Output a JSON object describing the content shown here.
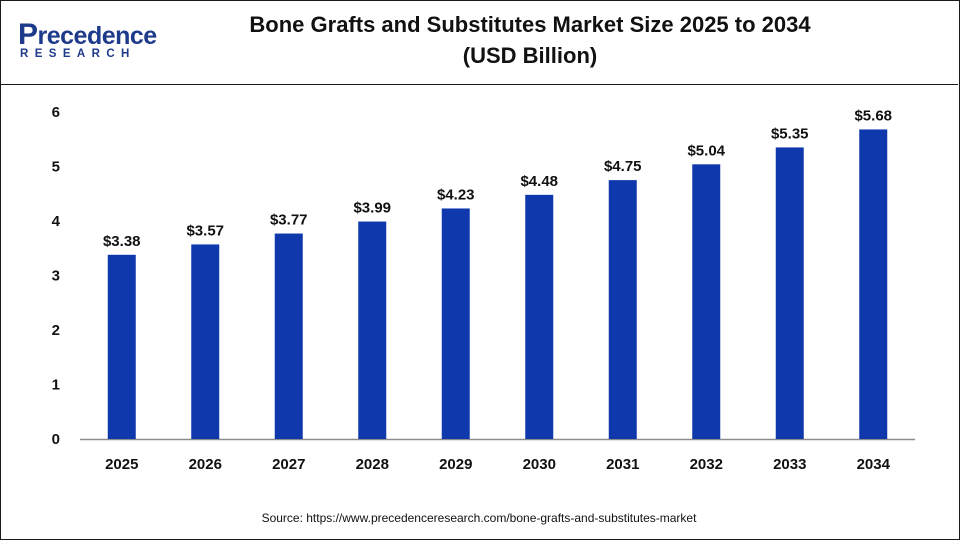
{
  "header": {
    "logo_main": "recedence",
    "logo_main_initial": "P",
    "logo_sub": "RESEARCH",
    "title_line1": "Bone Grafts and Substitutes Market Size 2025 to 2034",
    "title_line2": "(USD Billion)"
  },
  "footer": {
    "source": "Source: https://www.precedenceresearch.com/bone-grafts-and-substitutes-market"
  },
  "colors": {
    "bar": "#0f38ad",
    "axis": "#8c8c8c",
    "text": "#111111",
    "brand": "#1e3a8a"
  },
  "chart_data": {
    "type": "bar",
    "title": "Bone Grafts and Substitutes Market Size 2025 to 2034 (USD Billion)",
    "categories": [
      "2025",
      "2026",
      "2027",
      "2028",
      "2029",
      "2030",
      "2031",
      "2032",
      "2033",
      "2034"
    ],
    "values": [
      3.38,
      3.57,
      3.77,
      3.99,
      4.23,
      4.48,
      4.75,
      5.04,
      5.35,
      5.68
    ],
    "value_labels": [
      "$3.38",
      "$3.57",
      "$3.77",
      "$3.99",
      "$4.23",
      "$4.48",
      "$4.75",
      "$5.04",
      "$5.35",
      "$5.68"
    ],
    "yticks": [
      "0",
      "1",
      "2",
      "3",
      "4",
      "5",
      "6"
    ],
    "ylim": [
      0,
      6
    ],
    "xlabel": "",
    "ylabel": "",
    "grid": false,
    "legend": "none"
  }
}
